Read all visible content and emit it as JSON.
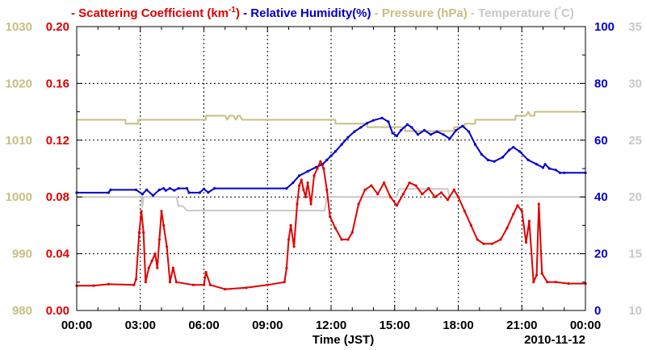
{
  "chart_data": {
    "type": "line",
    "date_label": "2010-11-12",
    "xlabel": "Time (JST)",
    "x_range_hours": [
      0,
      24
    ],
    "x_ticks": [
      {
        "h": 0,
        "label": "00:00"
      },
      {
        "h": 3,
        "label": "03:00"
      },
      {
        "h": 6,
        "label": "06:00"
      },
      {
        "h": 9,
        "label": "09:00"
      },
      {
        "h": 12,
        "label": "12:00"
      },
      {
        "h": 15,
        "label": "15:00"
      },
      {
        "h": 18,
        "label": "18:00"
      },
      {
        "h": 21,
        "label": "21:00"
      },
      {
        "h": 24,
        "label": "00:00"
      }
    ],
    "legend": [
      {
        "prefix": "- ",
        "text": "Scattering Coefficient (km",
        "sup": "-1",
        "suffix": ")",
        "color": "#e00000"
      },
      {
        "prefix": " - ",
        "text": "Relative Humidity(%)",
        "sup": "",
        "suffix": "",
        "color": "#0000cc"
      },
      {
        "prefix": " - ",
        "text": "Pressure (hPa)",
        "sup": "",
        "suffix": "",
        "color": "#c8be82"
      },
      {
        "prefix": " - ",
        "text": "Temperature (",
        "sup": "°",
        "suffix": "C)",
        "color": "#c8c8c8"
      }
    ],
    "axes": {
      "scattering": {
        "range": [
          0,
          0.2
        ],
        "ticks": [
          "0.00",
          "0.04",
          "0.08",
          "0.12",
          "0.16",
          "0.20"
        ],
        "color": "#e00000"
      },
      "pressure": {
        "range": [
          980,
          1030
        ],
        "ticks": [
          "980",
          "990",
          "1000",
          "1010",
          "1020",
          "1030"
        ],
        "color": "#c8be82"
      },
      "humidity": {
        "range": [
          0,
          100
        ],
        "ticks": [
          "0",
          "20",
          "40",
          "60",
          "80",
          "100"
        ],
        "color": "#0000cc"
      },
      "temperature": {
        "range": [
          10,
          35
        ],
        "ticks": [
          "10",
          "15",
          "20",
          "25",
          "30",
          "35"
        ],
        "color": "#c8c8c8"
      }
    },
    "series": [
      {
        "name": "Pressure (hPa)",
        "axis": "pressure",
        "color": "#c8be82",
        "markers": false,
        "points": [
          [
            0,
            1013.6
          ],
          [
            2.3,
            1013.6
          ],
          [
            2.3,
            1012.9
          ],
          [
            2.9,
            1012.9
          ],
          [
            2.9,
            1013.6
          ],
          [
            6.1,
            1013.6
          ],
          [
            6.1,
            1014.3
          ],
          [
            7.0,
            1014.3
          ],
          [
            7.1,
            1013.6
          ],
          [
            7.2,
            1014.3
          ],
          [
            7.4,
            1014.3
          ],
          [
            7.5,
            1013.6
          ],
          [
            7.6,
            1014.3
          ],
          [
            7.7,
            1014.3
          ],
          [
            7.8,
            1013.6
          ],
          [
            12.2,
            1013.6
          ],
          [
            12.2,
            1012.9
          ],
          [
            13.7,
            1012.9
          ],
          [
            13.7,
            1012.3
          ],
          [
            15.5,
            1012.3
          ],
          [
            15.5,
            1011.6
          ],
          [
            17.8,
            1011.6
          ],
          [
            17.8,
            1012.3
          ],
          [
            18.3,
            1012.3
          ],
          [
            18.3,
            1012.9
          ],
          [
            18.8,
            1012.9
          ],
          [
            18.8,
            1013.6
          ],
          [
            20.7,
            1013.6
          ],
          [
            20.7,
            1014.3
          ],
          [
            21.2,
            1014.3
          ],
          [
            21.3,
            1015.0
          ],
          [
            21.4,
            1014.3
          ],
          [
            21.6,
            1014.3
          ],
          [
            21.6,
            1015.0
          ],
          [
            24,
            1015.0
          ]
        ]
      },
      {
        "name": "Temperature (°C)",
        "axis": "temperature",
        "color": "#c8c8c8",
        "markers": false,
        "points": [
          [
            0,
            20.0
          ],
          [
            3.05,
            20.0
          ],
          [
            3.1,
            19.1
          ],
          [
            3.15,
            20.0
          ],
          [
            4.7,
            20.0
          ],
          [
            4.8,
            19.2
          ],
          [
            5.0,
            19.2
          ],
          [
            5.2,
            18.8
          ],
          [
            10.7,
            18.8
          ],
          [
            11.7,
            18.8
          ],
          [
            11.8,
            20.0
          ],
          [
            15.1,
            20.0
          ],
          [
            15.2,
            20.7
          ],
          [
            17.5,
            20.7
          ],
          [
            17.6,
            20.0
          ],
          [
            24,
            20.0
          ]
        ]
      },
      {
        "name": "Relative Humidity(%)",
        "axis": "humidity",
        "color": "#0000cc",
        "markers": true,
        "points": [
          [
            0,
            41.5
          ],
          [
            1.5,
            41.5
          ],
          [
            1.6,
            42.5
          ],
          [
            2.8,
            42.5
          ],
          [
            3.1,
            41.0
          ],
          [
            3.3,
            42.5
          ],
          [
            3.6,
            40.5
          ],
          [
            3.9,
            42.5
          ],
          [
            4.1,
            43.0
          ],
          [
            4.2,
            42.3
          ],
          [
            4.4,
            43.0
          ],
          [
            4.6,
            42.3
          ],
          [
            4.8,
            43.0
          ],
          [
            5.2,
            43.0
          ],
          [
            5.3,
            41.5
          ],
          [
            5.8,
            41.5
          ],
          [
            6.0,
            42.8
          ],
          [
            6.2,
            41.6
          ],
          [
            6.5,
            43.0
          ],
          [
            9.9,
            43.0
          ],
          [
            10.2,
            45.0
          ],
          [
            10.5,
            47.5
          ],
          [
            10.9,
            49.0
          ],
          [
            11.3,
            50.5
          ],
          [
            11.6,
            51.5
          ],
          [
            11.8,
            53.0
          ],
          [
            12.0,
            54.5
          ],
          [
            12.2,
            56.0
          ],
          [
            12.5,
            58.5
          ],
          [
            12.8,
            61.0
          ],
          [
            13.1,
            63.0
          ],
          [
            13.4,
            64.5
          ],
          [
            13.7,
            66.0
          ],
          [
            14.0,
            67.0
          ],
          [
            14.4,
            67.8
          ],
          [
            14.7,
            66.5
          ],
          [
            14.9,
            62.5
          ],
          [
            15.1,
            61.5
          ],
          [
            15.3,
            63.5
          ],
          [
            15.6,
            65.5
          ],
          [
            15.8,
            64.5
          ],
          [
            16.1,
            62.0
          ],
          [
            16.4,
            63.5
          ],
          [
            16.7,
            62.0
          ],
          [
            17.0,
            63.0
          ],
          [
            17.3,
            62.0
          ],
          [
            17.6,
            60.5
          ],
          [
            17.9,
            63.5
          ],
          [
            18.2,
            65.0
          ],
          [
            18.5,
            63.0
          ],
          [
            18.8,
            58.5
          ],
          [
            19.1,
            55.0
          ],
          [
            19.4,
            53.0
          ],
          [
            19.7,
            52.5
          ],
          [
            20.1,
            54.0
          ],
          [
            20.4,
            56.5
          ],
          [
            20.6,
            57.5
          ],
          [
            20.9,
            56.0
          ],
          [
            21.3,
            53.0
          ],
          [
            21.7,
            51.5
          ],
          [
            22.0,
            50.3
          ],
          [
            22.1,
            51.5
          ],
          [
            22.3,
            50.0
          ],
          [
            22.6,
            49.5
          ],
          [
            22.8,
            48.5
          ],
          [
            23.0,
            48.5
          ],
          [
            24,
            48.5
          ]
        ]
      },
      {
        "name": "Scattering Coefficient (km-1)",
        "axis": "scattering",
        "color": "#e00000",
        "markers": true,
        "points": [
          [
            0,
            0.0175
          ],
          [
            0.8,
            0.0175
          ],
          [
            1.5,
            0.0185
          ],
          [
            2.7,
            0.018
          ],
          [
            2.8,
            0.022
          ],
          [
            2.95,
            0.055
          ],
          [
            3.05,
            0.07
          ],
          [
            3.15,
            0.055
          ],
          [
            3.25,
            0.02
          ],
          [
            3.4,
            0.03
          ],
          [
            3.55,
            0.035
          ],
          [
            3.7,
            0.04
          ],
          [
            3.8,
            0.03
          ],
          [
            3.9,
            0.05
          ],
          [
            4.0,
            0.07
          ],
          [
            4.1,
            0.06
          ],
          [
            4.25,
            0.045
          ],
          [
            4.4,
            0.02
          ],
          [
            4.55,
            0.03
          ],
          [
            4.7,
            0.02
          ],
          [
            5.5,
            0.018
          ],
          [
            6.0,
            0.018
          ],
          [
            6.1,
            0.027
          ],
          [
            6.3,
            0.018
          ],
          [
            7.0,
            0.015
          ],
          [
            8.0,
            0.016
          ],
          [
            9.0,
            0.018
          ],
          [
            9.8,
            0.02
          ],
          [
            9.9,
            0.03
          ],
          [
            10.0,
            0.05
          ],
          [
            10.1,
            0.06
          ],
          [
            10.25,
            0.045
          ],
          [
            10.4,
            0.075
          ],
          [
            10.5,
            0.088
          ],
          [
            10.6,
            0.092
          ],
          [
            10.7,
            0.085
          ],
          [
            10.8,
            0.08
          ],
          [
            10.9,
            0.09
          ],
          [
            11.05,
            0.075
          ],
          [
            11.2,
            0.095
          ],
          [
            11.35,
            0.1
          ],
          [
            11.5,
            0.105
          ],
          [
            11.65,
            0.1
          ],
          [
            11.8,
            0.085
          ],
          [
            11.95,
            0.066
          ],
          [
            12.2,
            0.058
          ],
          [
            12.5,
            0.05
          ],
          [
            12.8,
            0.05
          ],
          [
            13.0,
            0.055
          ],
          [
            13.3,
            0.075
          ],
          [
            13.6,
            0.085
          ],
          [
            13.9,
            0.088
          ],
          [
            14.2,
            0.082
          ],
          [
            14.5,
            0.09
          ],
          [
            14.8,
            0.08
          ],
          [
            15.1,
            0.074
          ],
          [
            15.4,
            0.082
          ],
          [
            15.7,
            0.09
          ],
          [
            16.0,
            0.088
          ],
          [
            16.3,
            0.082
          ],
          [
            16.6,
            0.086
          ],
          [
            16.9,
            0.08
          ],
          [
            17.2,
            0.083
          ],
          [
            17.5,
            0.078
          ],
          [
            17.8,
            0.085
          ],
          [
            18.0,
            0.08
          ],
          [
            18.3,
            0.07
          ],
          [
            18.6,
            0.06
          ],
          [
            18.9,
            0.05
          ],
          [
            19.2,
            0.047
          ],
          [
            19.6,
            0.047
          ],
          [
            20.0,
            0.05
          ],
          [
            20.3,
            0.058
          ],
          [
            20.6,
            0.068
          ],
          [
            20.8,
            0.074
          ],
          [
            21.0,
            0.07
          ],
          [
            21.2,
            0.048
          ],
          [
            21.35,
            0.063
          ],
          [
            21.55,
            0.02
          ],
          [
            21.7,
            0.025
          ],
          [
            21.8,
            0.075
          ],
          [
            21.95,
            0.026
          ],
          [
            22.2,
            0.02
          ],
          [
            22.6,
            0.02
          ],
          [
            23.2,
            0.019
          ],
          [
            24,
            0.019
          ]
        ]
      }
    ]
  }
}
